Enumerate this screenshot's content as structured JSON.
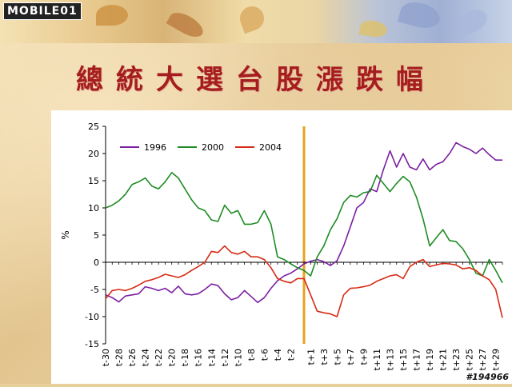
{
  "header": {
    "logo_text": "MOBILE01",
    "title": "總統大選台股漲跌幅"
  },
  "watermark": "#194966",
  "chart_data": {
    "type": "line",
    "title": "總統大選台股漲跌幅",
    "xlabel": "",
    "ylabel": "%",
    "ylim": [
      -15,
      25
    ],
    "yticks": [
      -15,
      -10,
      -5,
      0,
      5,
      10,
      15,
      20,
      25
    ],
    "x_range": [
      -30,
      30
    ],
    "x_tick_labels": [
      "t-30",
      "t-28",
      "t-26",
      "t-24",
      "t-22",
      "t-20",
      "t-18",
      "t-16",
      "t-14",
      "t-12",
      "t-10",
      "t-8",
      "t-6",
      "t-4",
      "t-2",
      "t+1",
      "t+3",
      "t+5",
      "t+7",
      "t+9",
      "t+11",
      "t+13",
      "t+15",
      "t+17",
      "t+19",
      "t+21",
      "t+23",
      "t+25",
      "t+27",
      "t+29"
    ],
    "x_tick_values": [
      -30,
      -28,
      -26,
      -24,
      -22,
      -20,
      -18,
      -16,
      -14,
      -12,
      -10,
      -8,
      -6,
      -4,
      -2,
      1,
      3,
      5,
      7,
      9,
      11,
      13,
      15,
      17,
      19,
      21,
      23,
      25,
      27,
      29
    ],
    "event_marker_x": 0,
    "event_marker_color": "#e8a21c",
    "legend_position": "top-left",
    "series": [
      {
        "name": "1996",
        "color": "#7b1fa2",
        "points": [
          [
            -30,
            -6
          ],
          [
            -29,
            -6.5
          ],
          [
            -28,
            -7.3
          ],
          [
            -27,
            -6.2
          ],
          [
            -26,
            -6
          ],
          [
            -25,
            -5.8
          ],
          [
            -24,
            -4.5
          ],
          [
            -23,
            -4.8
          ],
          [
            -22,
            -5.2
          ],
          [
            -21,
            -4.8
          ],
          [
            -20,
            -5.6
          ],
          [
            -19,
            -4.4
          ],
          [
            -18,
            -5.8
          ],
          [
            -17,
            -6
          ],
          [
            -16,
            -5.8
          ],
          [
            -15,
            -5
          ],
          [
            -14,
            -4
          ],
          [
            -13,
            -4.3
          ],
          [
            -12,
            -5.8
          ],
          [
            -11,
            -6.9
          ],
          [
            -10,
            -6.5
          ],
          [
            -9,
            -5.2
          ],
          [
            -8,
            -6.3
          ],
          [
            -7,
            -7.4
          ],
          [
            -6,
            -6.5
          ],
          [
            -5,
            -4.8
          ],
          [
            -4,
            -3.4
          ],
          [
            -3,
            -2.5
          ],
          [
            -2,
            -2
          ],
          [
            -1,
            -1.2
          ],
          [
            0,
            -0.3
          ],
          [
            1,
            0.2
          ],
          [
            2,
            0.5
          ],
          [
            3,
            0.1
          ],
          [
            4,
            -0.6
          ],
          [
            5,
            0.3
          ],
          [
            6,
            3
          ],
          [
            7,
            6.5
          ],
          [
            8,
            10
          ],
          [
            9,
            11
          ],
          [
            10,
            13.5
          ],
          [
            11,
            13
          ],
          [
            12,
            17
          ],
          [
            13,
            20.5
          ],
          [
            14,
            17.5
          ],
          [
            15,
            20
          ],
          [
            16,
            17.5
          ],
          [
            17,
            17
          ],
          [
            18,
            19
          ],
          [
            19,
            17
          ],
          [
            20,
            18
          ],
          [
            21,
            18.5
          ],
          [
            22,
            20
          ],
          [
            23,
            22
          ],
          [
            24,
            21.3
          ],
          [
            25,
            20.8
          ],
          [
            26,
            20
          ],
          [
            27,
            21
          ],
          [
            28,
            19.8
          ],
          [
            29,
            18.8
          ],
          [
            30,
            18.8
          ]
        ]
      },
      {
        "name": "2000",
        "color": "#1e8c24",
        "points": [
          [
            -30,
            10
          ],
          [
            -29,
            10.5
          ],
          [
            -28,
            11.3
          ],
          [
            -27,
            12.5
          ],
          [
            -26,
            14.3
          ],
          [
            -25,
            14.8
          ],
          [
            -24,
            15.5
          ],
          [
            -23,
            14
          ],
          [
            -22,
            13.5
          ],
          [
            -21,
            14.8
          ],
          [
            -20,
            16.5
          ],
          [
            -19,
            15.5
          ],
          [
            -18,
            13.5
          ],
          [
            -17,
            11.5
          ],
          [
            -16,
            10
          ],
          [
            -15,
            9.5
          ],
          [
            -14,
            7.8
          ],
          [
            -13,
            7.5
          ],
          [
            -12,
            10.5
          ],
          [
            -11,
            9
          ],
          [
            -10,
            9.5
          ],
          [
            -9,
            7
          ],
          [
            -8,
            7
          ],
          [
            -7,
            7.3
          ],
          [
            -6,
            9.5
          ],
          [
            -5,
            7
          ],
          [
            -4,
            1
          ],
          [
            -3,
            0.5
          ],
          [
            -2,
            -0.3
          ],
          [
            -1,
            -1
          ],
          [
            0,
            -1.5
          ],
          [
            1,
            -2.5
          ],
          [
            2,
            1
          ],
          [
            3,
            3
          ],
          [
            4,
            6
          ],
          [
            5,
            8
          ],
          [
            6,
            11
          ],
          [
            7,
            12.3
          ],
          [
            8,
            12
          ],
          [
            9,
            12.8
          ],
          [
            10,
            13
          ],
          [
            11,
            16
          ],
          [
            12,
            14.5
          ],
          [
            13,
            13
          ],
          [
            14,
            14.5
          ],
          [
            15,
            15.8
          ],
          [
            16,
            14.8
          ],
          [
            17,
            12
          ],
          [
            18,
            8
          ],
          [
            19,
            3
          ],
          [
            20,
            4.5
          ],
          [
            21,
            6
          ],
          [
            22,
            4
          ],
          [
            23,
            3.8
          ],
          [
            24,
            2.5
          ],
          [
            25,
            0.5
          ],
          [
            26,
            -2
          ],
          [
            27,
            -2.5
          ],
          [
            28,
            0.5
          ],
          [
            29,
            -1.5
          ],
          [
            30,
            -3.8
          ]
        ]
      },
      {
        "name": "2004",
        "color": "#d62b14",
        "points": [
          [
            -30,
            -6.7
          ],
          [
            -29,
            -5.2
          ],
          [
            -28,
            -5
          ],
          [
            -27,
            -5.2
          ],
          [
            -26,
            -4.8
          ],
          [
            -25,
            -4.2
          ],
          [
            -24,
            -3.5
          ],
          [
            -23,
            -3.2
          ],
          [
            -22,
            -2.8
          ],
          [
            -21,
            -2.2
          ],
          [
            -20,
            -2.5
          ],
          [
            -19,
            -2.8
          ],
          [
            -18,
            -2.3
          ],
          [
            -17,
            -1.5
          ],
          [
            -16,
            -0.8
          ],
          [
            -15,
            0
          ],
          [
            -14,
            2
          ],
          [
            -13,
            1.8
          ],
          [
            -12,
            3
          ],
          [
            -11,
            1.8
          ],
          [
            -10,
            1.5
          ],
          [
            -9,
            2
          ],
          [
            -8,
            1
          ],
          [
            -7,
            1
          ],
          [
            -6,
            0.5
          ],
          [
            -5,
            -1
          ],
          [
            -4,
            -3
          ],
          [
            -3,
            -3.5
          ],
          [
            -2,
            -3.8
          ],
          [
            -1,
            -3
          ],
          [
            0,
            -3
          ],
          [
            1,
            -6
          ],
          [
            2,
            -9
          ],
          [
            3,
            -9.3
          ],
          [
            4,
            -9.5
          ],
          [
            5,
            -10
          ],
          [
            6,
            -6
          ],
          [
            7,
            -4.8
          ],
          [
            8,
            -4.7
          ],
          [
            9,
            -4.5
          ],
          [
            10,
            -4.2
          ],
          [
            11,
            -3.5
          ],
          [
            12,
            -3
          ],
          [
            13,
            -2.5
          ],
          [
            14,
            -2.3
          ],
          [
            15,
            -3
          ],
          [
            16,
            -0.8
          ],
          [
            17,
            0
          ],
          [
            18,
            0.5
          ],
          [
            19,
            -0.8
          ],
          [
            20,
            -0.5
          ],
          [
            21,
            -0.2
          ],
          [
            22,
            -0.3
          ],
          [
            23,
            -0.5
          ],
          [
            24,
            -1.2
          ],
          [
            25,
            -1
          ],
          [
            26,
            -1.5
          ],
          [
            27,
            -2.5
          ],
          [
            28,
            -3.2
          ],
          [
            29,
            -5
          ],
          [
            30,
            -10.2
          ]
        ]
      }
    ]
  }
}
